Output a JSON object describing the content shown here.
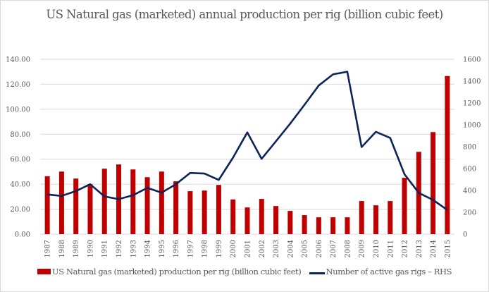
{
  "chart_data": {
    "type": "bar+line",
    "title": "US Natural gas (marketed) annual production per rig (billion cubic feet)",
    "categories": [
      "1987",
      "1988",
      "1989",
      "1990",
      "1991",
      "1992",
      "1993",
      "1994",
      "1995",
      "1996",
      "1997",
      "1998",
      "1999",
      "2000",
      "2001",
      "2002",
      "2003",
      "2004",
      "2005",
      "2006",
      "2007",
      "2008",
      "2009",
      "2010",
      "2011",
      "2012",
      "2013",
      "2014",
      "2015"
    ],
    "series": [
      {
        "name": "US Natural gas (marketed) production per rig (billion cubic feet)",
        "type": "bar",
        "axis": "left",
        "color": "#c00000",
        "values": [
          46.4,
          50.1,
          44.5,
          40.0,
          52.4,
          55.8,
          51.8,
          45.6,
          50.1,
          42.3,
          34.4,
          34.9,
          39.4,
          27.8,
          21.4,
          28.2,
          22.5,
          18.6,
          15.2,
          13.5,
          13.5,
          13.5,
          26.5,
          23.1,
          26.5,
          45.1,
          65.9,
          81.7,
          126.6
        ]
      },
      {
        "name": "Number of active gas rigs - RHS",
        "type": "line",
        "axis": "right",
        "color": "#0d2458",
        "values": [
          363,
          350,
          394,
          457,
          345,
          320,
          356,
          423,
          380,
          457,
          560,
          554,
          496,
          700,
          931,
          689,
          850,
          1011,
          1183,
          1360,
          1462,
          1486,
          797,
          936,
          880,
          549,
          378,
          313,
          221
        ]
      }
    ],
    "y_left": {
      "range": [
        0,
        140
      ],
      "ticks": [
        "0.00",
        "20.00",
        "40.00",
        "60.00",
        "80.00",
        "100.00",
        "120.00",
        "140.00"
      ]
    },
    "y_right": {
      "range": [
        0,
        1600
      ],
      "ticks": [
        "0",
        "200",
        "400",
        "600",
        "800",
        "1000",
        "1200",
        "1400",
        "1600"
      ]
    },
    "xlabel": "",
    "ylabel": "",
    "grid": true,
    "legend_position": "bottom"
  },
  "legend": {
    "bar_label": "US Natural gas (marketed) production per rig (billion cubic feet)",
    "line_label": "Number of active gas rigs – RHS"
  }
}
